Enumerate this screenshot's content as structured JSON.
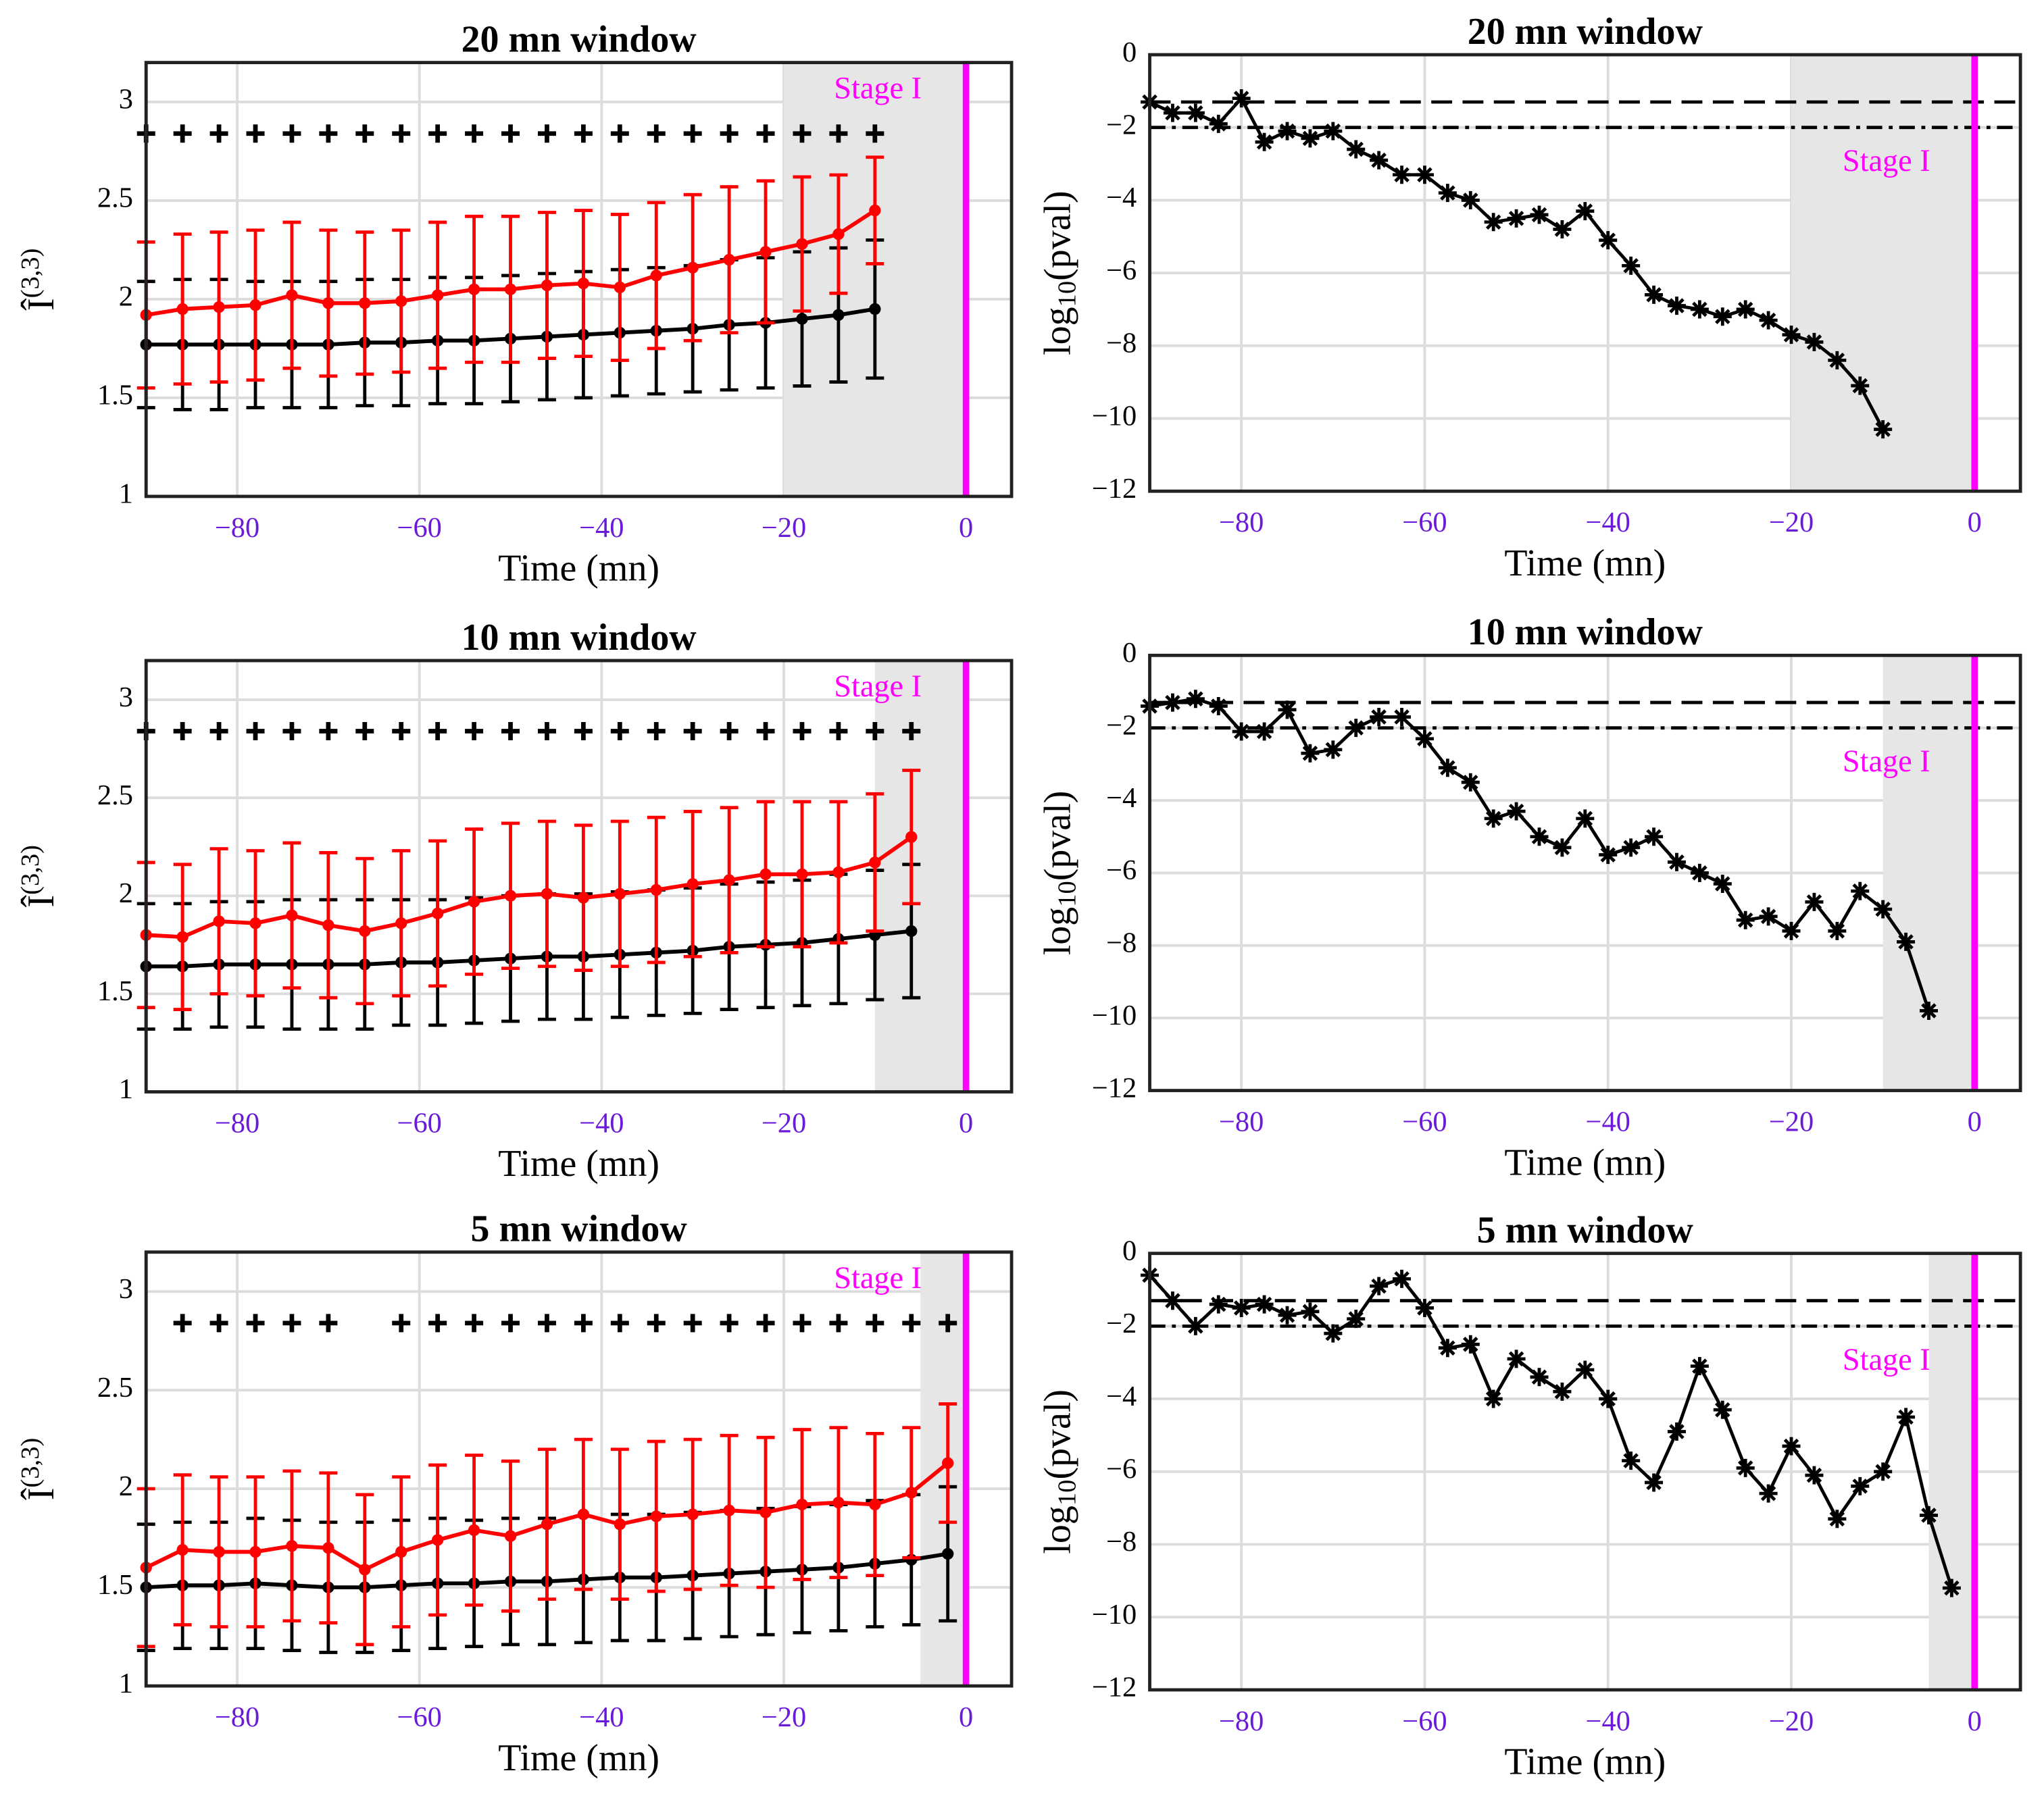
{
  "chart_data": [
    {
      "type": "errorbar",
      "title": "20 mn window",
      "xlabel": "Time (mn)",
      "ylabel": [
        "Î",
        "(3,3)"
      ],
      "ylabel_script": "super",
      "xlim": [
        -90,
        5
      ],
      "ylim": [
        1,
        3.2
      ],
      "xticks": [
        {
          "value": -80,
          "label": "−80"
        },
        {
          "value": -60,
          "label": "−60"
        },
        {
          "value": -40,
          "label": "−40"
        },
        {
          "value": -20,
          "label": "−20"
        },
        0
      ],
      "yticks": [
        1,
        1.5,
        2,
        2.5,
        3
      ],
      "grid": true,
      "shade": [
        -20,
        0
      ],
      "event_x": 0,
      "event_color": "#ff00ff",
      "annotation": "Stage I",
      "x": [
        -90,
        -86,
        -82,
        -78,
        -74,
        -70,
        -66,
        -62,
        -58,
        -54,
        -50,
        -46,
        -42,
        -38,
        -34,
        -30,
        -26,
        -22,
        -18,
        -14,
        -10
      ],
      "series": [
        {
          "color": "#000000",
          "values": [
            1.77,
            1.77,
            1.77,
            1.77,
            1.77,
            1.77,
            1.78,
            1.78,
            1.79,
            1.79,
            1.8,
            1.81,
            1.82,
            1.83,
            1.84,
            1.85,
            1.87,
            1.88,
            1.9,
            1.92,
            1.95
          ],
          "errors": [
            0.32,
            0.33,
            0.33,
            0.32,
            0.32,
            0.32,
            0.32,
            0.32,
            0.32,
            0.32,
            0.32,
            0.32,
            0.32,
            0.32,
            0.32,
            0.32,
            0.33,
            0.33,
            0.34,
            0.34,
            0.35
          ]
        },
        {
          "color": "#ff0000",
          "values": [
            1.92,
            1.95,
            1.96,
            1.97,
            2.02,
            1.98,
            1.98,
            1.99,
            2.02,
            2.05,
            2.05,
            2.07,
            2.08,
            2.06,
            2.12,
            2.16,
            2.2,
            2.24,
            2.28,
            2.33,
            2.45
          ],
          "errors": [
            0.37,
            0.38,
            0.38,
            0.38,
            0.37,
            0.37,
            0.36,
            0.36,
            0.37,
            0.37,
            0.37,
            0.37,
            0.37,
            0.37,
            0.37,
            0.37,
            0.37,
            0.36,
            0.34,
            0.3,
            0.27
          ]
        }
      ],
      "markers": {
        "x": [
          -90,
          -86,
          -82,
          -78,
          -74,
          -70,
          -66,
          -62,
          -58,
          -54,
          -50,
          -46,
          -42,
          -38,
          -34,
          -30,
          -26,
          -22,
          -18,
          -14,
          -10
        ],
        "values": [
          2.84,
          2.84,
          2.84,
          2.84,
          2.84,
          2.84,
          2.84,
          2.84,
          2.84,
          2.84,
          2.84,
          2.84,
          2.84,
          2.84,
          2.84,
          2.84,
          2.84,
          2.84,
          2.84,
          2.84,
          2.84
        ]
      }
    },
    {
      "type": "line",
      "title": "20 mn window",
      "xlabel": "Time (mn)",
      "ylabel": [
        "log",
        "10",
        "(pval)"
      ],
      "ylabel_script": "sub",
      "xlim": [
        -90,
        5
      ],
      "ylim": [
        -12,
        0
      ],
      "xticks": [
        {
          "value": -80,
          "label": "−80"
        },
        {
          "value": -60,
          "label": "−60"
        },
        {
          "value": -40,
          "label": "−40"
        },
        {
          "value": -20,
          "label": "−20"
        },
        0
      ],
      "yticks": [
        0,
        {
          "value": -2,
          "label": "−2"
        },
        {
          "value": -4,
          "label": "−4"
        },
        {
          "value": -6,
          "label": "−6"
        },
        {
          "value": -8,
          "label": "−8"
        },
        {
          "value": -10,
          "label": "−10"
        },
        {
          "value": -12,
          "label": "−12"
        }
      ],
      "grid": true,
      "shade": [
        -20,
        0
      ],
      "event_x": 0,
      "event_color": "#ff00ff",
      "annotation": "Stage I",
      "hlines": [
        -1.3,
        -2
      ],
      "hline_styles": [
        "dashed",
        "dashdot"
      ],
      "x": [
        -90,
        -87.5,
        -85,
        -82.5,
        -80,
        -77.5,
        -75,
        -72.5,
        -70,
        -67.5,
        -65,
        -62.5,
        -60,
        -57.5,
        -55,
        -52.5,
        -50,
        -47.5,
        -45,
        -42.5,
        -40,
        -37.5,
        -35,
        -32.5,
        -30,
        -27.5,
        -25,
        -22.5,
        -20,
        -17.5,
        -15,
        -12.5,
        -10
      ],
      "series": [
        {
          "color": "#000000",
          "values": [
            -1.3,
            -1.6,
            -1.6,
            -1.9,
            -1.2,
            -2.4,
            -2.1,
            -2.3,
            -2.1,
            -2.6,
            -2.9,
            -3.3,
            -3.3,
            -3.8,
            -4.0,
            -4.6,
            -4.5,
            -4.4,
            -4.8,
            -4.3,
            -5.1,
            -5.8,
            -6.6,
            -6.9,
            -7.0,
            -7.2,
            -7.0,
            -7.3,
            -7.7,
            -7.9,
            -8.4,
            -9.1,
            -10.3
          ]
        }
      ]
    },
    {
      "type": "errorbar",
      "title": "10 mn window",
      "xlabel": "Time (mn)",
      "ylabel": [
        "Î",
        "(3,3)"
      ],
      "ylabel_script": "super",
      "xlim": [
        -90,
        5
      ],
      "ylim": [
        1,
        3.2
      ],
      "xticks": [
        {
          "value": -80,
          "label": "−80"
        },
        {
          "value": -60,
          "label": "−60"
        },
        {
          "value": -40,
          "label": "−40"
        },
        {
          "value": -20,
          "label": "−20"
        },
        0
      ],
      "yticks": [
        1,
        1.5,
        2,
        2.5,
        3
      ],
      "grid": true,
      "shade": [
        -10,
        0
      ],
      "event_x": 0,
      "event_color": "#ff00ff",
      "annotation": "Stage I",
      "x": [
        -90,
        -86,
        -82,
        -78,
        -74,
        -70,
        -66,
        -62,
        -58,
        -54,
        -50,
        -46,
        -42,
        -38,
        -34,
        -30,
        -26,
        -22,
        -18,
        -14,
        -10,
        -6
      ],
      "series": [
        {
          "color": "#000000",
          "values": [
            1.64,
            1.64,
            1.65,
            1.65,
            1.65,
            1.65,
            1.65,
            1.66,
            1.66,
            1.67,
            1.68,
            1.69,
            1.69,
            1.7,
            1.71,
            1.72,
            1.74,
            1.75,
            1.76,
            1.78,
            1.8,
            1.82
          ],
          "errors": [
            0.32,
            0.32,
            0.32,
            0.32,
            0.33,
            0.33,
            0.33,
            0.32,
            0.32,
            0.32,
            0.32,
            0.32,
            0.32,
            0.32,
            0.32,
            0.32,
            0.32,
            0.32,
            0.32,
            0.33,
            0.33,
            0.34
          ]
        },
        {
          "color": "#ff0000",
          "values": [
            1.8,
            1.79,
            1.87,
            1.86,
            1.9,
            1.85,
            1.82,
            1.86,
            1.91,
            1.97,
            2.0,
            2.01,
            1.99,
            2.01,
            2.03,
            2.06,
            2.08,
            2.11,
            2.11,
            2.12,
            2.17,
            2.3
          ],
          "errors": [
            0.37,
            0.37,
            0.37,
            0.37,
            0.37,
            0.37,
            0.37,
            0.37,
            0.37,
            0.37,
            0.37,
            0.37,
            0.37,
            0.37,
            0.37,
            0.37,
            0.37,
            0.37,
            0.37,
            0.36,
            0.35,
            0.34
          ]
        }
      ],
      "markers": {
        "x": [
          -90,
          -86,
          -82,
          -78,
          -74,
          -70,
          -66,
          -62,
          -58,
          -54,
          -50,
          -46,
          -42,
          -38,
          -34,
          -30,
          -26,
          -22,
          -18,
          -14,
          -10,
          -6
        ],
        "values": [
          2.84,
          2.84,
          2.84,
          2.84,
          2.84,
          2.84,
          2.84,
          2.84,
          2.84,
          2.84,
          2.84,
          2.84,
          2.84,
          2.84,
          2.84,
          2.84,
          2.84,
          2.84,
          2.84,
          2.84,
          2.84,
          2.84
        ]
      }
    },
    {
      "type": "line",
      "title": "10 mn window",
      "xlabel": "Time (mn)",
      "ylabel": [
        "log",
        "10",
        "(pval)"
      ],
      "ylabel_script": "sub",
      "xlim": [
        -90,
        5
      ],
      "ylim": [
        -12,
        0
      ],
      "xticks": [
        {
          "value": -80,
          "label": "−80"
        },
        {
          "value": -60,
          "label": "−60"
        },
        {
          "value": -40,
          "label": "−40"
        },
        {
          "value": -20,
          "label": "−20"
        },
        0
      ],
      "yticks": [
        0,
        {
          "value": -2,
          "label": "−2"
        },
        {
          "value": -4,
          "label": "−4"
        },
        {
          "value": -6,
          "label": "−6"
        },
        {
          "value": -8,
          "label": "−8"
        },
        {
          "value": -10,
          "label": "−10"
        },
        {
          "value": -12,
          "label": "−12"
        }
      ],
      "grid": true,
      "shade": [
        -10,
        0
      ],
      "event_x": 0,
      "event_color": "#ff00ff",
      "annotation": "Stage I",
      "hlines": [
        -1.3,
        -2
      ],
      "hline_styles": [
        "dashed",
        "dashdot"
      ],
      "x": [
        -90,
        -87.5,
        -85,
        -82.5,
        -80,
        -77.5,
        -75,
        -72.5,
        -70,
        -67.5,
        -65,
        -62.5,
        -60,
        -57.5,
        -55,
        -52.5,
        -50,
        -47.5,
        -45,
        -42.5,
        -40,
        -37.5,
        -35,
        -32.5,
        -30,
        -27.5,
        -25,
        -22.5,
        -20,
        -17.5,
        -15,
        -12.5,
        -10,
        -7.5,
        -5
      ],
      "series": [
        {
          "color": "#000000",
          "values": [
            -1.4,
            -1.3,
            -1.2,
            -1.4,
            -2.1,
            -2.1,
            -1.5,
            -2.7,
            -2.6,
            -2.0,
            -1.7,
            -1.7,
            -2.3,
            -3.1,
            -3.5,
            -4.5,
            -4.3,
            -5.0,
            -5.3,
            -4.5,
            -5.5,
            -5.3,
            -5.0,
            -5.7,
            -6.0,
            -6.3,
            -7.3,
            -7.2,
            -7.6,
            -6.8,
            -7.6,
            -6.5,
            -7.0,
            -7.9,
            -9.8
          ]
        }
      ]
    },
    {
      "type": "errorbar",
      "title": "5 mn window",
      "xlabel": "Time (mn)",
      "ylabel": [
        "Î",
        "(3,3)"
      ],
      "ylabel_script": "super",
      "xlim": [
        -90,
        5
      ],
      "ylim": [
        1,
        3.2
      ],
      "xticks": [
        {
          "value": -80,
          "label": "−80"
        },
        {
          "value": -60,
          "label": "−60"
        },
        {
          "value": -40,
          "label": "−40"
        },
        {
          "value": -20,
          "label": "−20"
        },
        0
      ],
      "yticks": [
        1,
        1.5,
        2,
        2.5,
        3
      ],
      "grid": true,
      "shade": [
        -5,
        0
      ],
      "event_x": 0,
      "event_color": "#ff00ff",
      "annotation": "Stage I",
      "x": [
        -90,
        -86,
        -82,
        -78,
        -74,
        -70,
        -66,
        -62,
        -58,
        -54,
        -50,
        -46,
        -42,
        -38,
        -34,
        -30,
        -26,
        -22,
        -18,
        -14,
        -10,
        -6,
        -2
      ],
      "series": [
        {
          "color": "#000000",
          "values": [
            1.5,
            1.51,
            1.51,
            1.52,
            1.51,
            1.5,
            1.5,
            1.51,
            1.52,
            1.52,
            1.53,
            1.53,
            1.54,
            1.55,
            1.55,
            1.56,
            1.57,
            1.58,
            1.59,
            1.6,
            1.62,
            1.64,
            1.67
          ],
          "errors": [
            0.32,
            0.32,
            0.32,
            0.33,
            0.33,
            0.33,
            0.33,
            0.33,
            0.33,
            0.32,
            0.32,
            0.32,
            0.32,
            0.32,
            0.32,
            0.32,
            0.32,
            0.32,
            0.32,
            0.32,
            0.32,
            0.33,
            0.34
          ]
        },
        {
          "color": "#ff0000",
          "values": [
            1.6,
            1.69,
            1.68,
            1.68,
            1.71,
            1.7,
            1.59,
            1.68,
            1.74,
            1.79,
            1.76,
            1.82,
            1.87,
            1.82,
            1.86,
            1.87,
            1.89,
            1.88,
            1.92,
            1.93,
            1.92,
            1.98,
            2.13
          ],
          "errors": [
            0.4,
            0.38,
            0.38,
            0.38,
            0.38,
            0.38,
            0.38,
            0.38,
            0.38,
            0.38,
            0.38,
            0.38,
            0.38,
            0.38,
            0.38,
            0.38,
            0.38,
            0.38,
            0.38,
            0.38,
            0.36,
            0.33,
            0.3
          ]
        }
      ],
      "markers": {
        "x": [
          -86,
          -82,
          -78,
          -74,
          -70,
          -62,
          -58,
          -54,
          -50,
          -46,
          -42,
          -38,
          -34,
          -30,
          -26,
          -22,
          -18,
          -14,
          -10,
          -6,
          -2
        ],
        "values": [
          2.84,
          2.84,
          2.84,
          2.84,
          2.84,
          2.84,
          2.84,
          2.84,
          2.84,
          2.84,
          2.84,
          2.84,
          2.84,
          2.84,
          2.84,
          2.84,
          2.84,
          2.84,
          2.84,
          2.84,
          2.84
        ]
      }
    },
    {
      "type": "line",
      "title": "5 mn window",
      "xlabel": "Time (mn)",
      "ylabel": [
        "log",
        "10",
        "(pval)"
      ],
      "ylabel_script": "sub",
      "xlim": [
        -90,
        5
      ],
      "ylim": [
        -12,
        0
      ],
      "xticks": [
        {
          "value": -80,
          "label": "−80"
        },
        {
          "value": -60,
          "label": "−60"
        },
        {
          "value": -40,
          "label": "−40"
        },
        {
          "value": -20,
          "label": "−20"
        },
        0
      ],
      "yticks": [
        0,
        {
          "value": -2,
          "label": "−2"
        },
        {
          "value": -4,
          "label": "−4"
        },
        {
          "value": -6,
          "label": "−6"
        },
        {
          "value": -8,
          "label": "−8"
        },
        {
          "value": -10,
          "label": "−10"
        },
        {
          "value": -12,
          "label": "−12"
        }
      ],
      "grid": true,
      "shade": [
        -5,
        0
      ],
      "event_x": 0,
      "event_color": "#ff00ff",
      "annotation": "Stage I",
      "hlines": [
        -1.3,
        -2
      ],
      "hline_styles": [
        "dashed",
        "dashdot"
      ],
      "x": [
        -90,
        -87.5,
        -85,
        -82.5,
        -80,
        -77.5,
        -75,
        -72.5,
        -70,
        -67.5,
        -65,
        -62.5,
        -60,
        -57.5,
        -55,
        -52.5,
        -50,
        -47.5,
        -45,
        -42.5,
        -40,
        -37.5,
        -35,
        -32.5,
        -30,
        -27.5,
        -25,
        -22.5,
        -20,
        -17.5,
        -15,
        -12.5,
        -10,
        -7.5,
        -5,
        -2.5
      ],
      "series": [
        {
          "color": "#000000",
          "values": [
            -0.6,
            -1.3,
            -2.0,
            -1.4,
            -1.5,
            -1.4,
            -1.7,
            -1.6,
            -2.2,
            -1.8,
            -0.9,
            -0.7,
            -1.5,
            -2.6,
            -2.5,
            -4.0,
            -2.9,
            -3.4,
            -3.8,
            -3.2,
            -4.0,
            -5.7,
            -6.3,
            -4.9,
            -3.1,
            -4.3,
            -5.9,
            -6.6,
            -5.3,
            -6.1,
            -7.3,
            -6.4,
            -6.0,
            -4.5,
            -7.2,
            -9.2
          ]
        }
      ]
    }
  ]
}
